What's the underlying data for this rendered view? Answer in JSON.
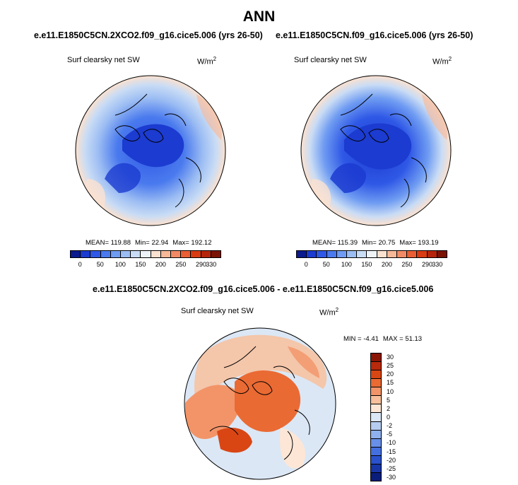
{
  "figure": {
    "title": "ANN"
  },
  "panels": [
    {
      "case": "e.e11.E1850C5CN.2XCO2.f09_g16.cice5.006 (yrs 26-50)",
      "variable": "Surf clearsky net SW",
      "units_base": "W/m",
      "units_exp": "2",
      "stats": {
        "mean": "MEAN= 119.88",
        "min": "Min=  22.94",
        "max": "Max= 192.12"
      }
    },
    {
      "case": "e.e11.E1850C5CN.f09_g16.cice5.006 (yrs 26-50)",
      "variable": "Surf clearsky net SW",
      "units_base": "W/m",
      "units_exp": "2",
      "stats": {
        "mean": "MEAN= 115.39",
        "min": "Min=  20.75",
        "max": "Max= 193.19"
      }
    }
  ],
  "difference": {
    "title": "e.e11.E1850C5CN.2XCO2.f09_g16.cice5.006 - e.e11.E1850C5CN.f09_g16.cice5.006",
    "variable": "Surf clearsky net SW",
    "units_base": "W/m",
    "units_exp": "2",
    "stats": {
      "min": "MIN =  -4.41",
      "max": "MAX =  51.13"
    }
  },
  "colorbar_main": {
    "colors": [
      "#0b1a8c",
      "#1c3bd0",
      "#2f58e6",
      "#4a7aee",
      "#6f9cf2",
      "#9cbdf3",
      "#c9dcf5",
      "#eef3f7",
      "#fbe1cf",
      "#f7b898",
      "#f28b65",
      "#ea5e33",
      "#d93b13",
      "#b5250b",
      "#7a1304"
    ],
    "ticks": [
      "0",
      "50",
      "100",
      "150",
      "200",
      "250",
      "290",
      "330"
    ]
  },
  "colorbar_diff": {
    "colors": [
      "#8a1605",
      "#b9290b",
      "#d94614",
      "#ea6a33",
      "#f29468",
      "#f8bf9c",
      "#fde6d6",
      "#dbe7f5",
      "#b7cef2",
      "#8fb1ee",
      "#6890e8",
      "#4470df",
      "#2a52cc",
      "#1836a6",
      "#0b1d7a"
    ],
    "ticks": [
      "30",
      "25",
      "20",
      "15",
      "10",
      "5",
      "2",
      "0",
      "-2",
      "-5",
      "-10",
      "-15",
      "-20",
      "-25",
      "-30"
    ]
  }
}
